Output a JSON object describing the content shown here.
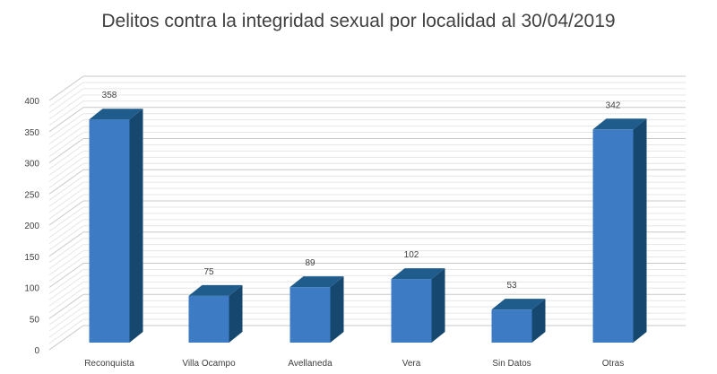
{
  "chart_data": {
    "type": "bar",
    "title": "Delitos contra la integridad sexual por localidad al 30/04/2019",
    "categories": [
      "Reconquista",
      "Villa Ocampo",
      "Avellaneda",
      "Vera",
      "Sin Datos",
      "Otras"
    ],
    "values": [
      358,
      75,
      89,
      102,
      53,
      342
    ],
    "xlabel": "",
    "ylabel": "",
    "ylim": [
      0,
      400
    ],
    "yticks": [
      0,
      50,
      100,
      150,
      200,
      250,
      300,
      350,
      400
    ],
    "grid": true,
    "legend": "none",
    "colors": {
      "front": "#3d7cc4",
      "side": "#15476f",
      "top": "#1f5c8c"
    }
  }
}
